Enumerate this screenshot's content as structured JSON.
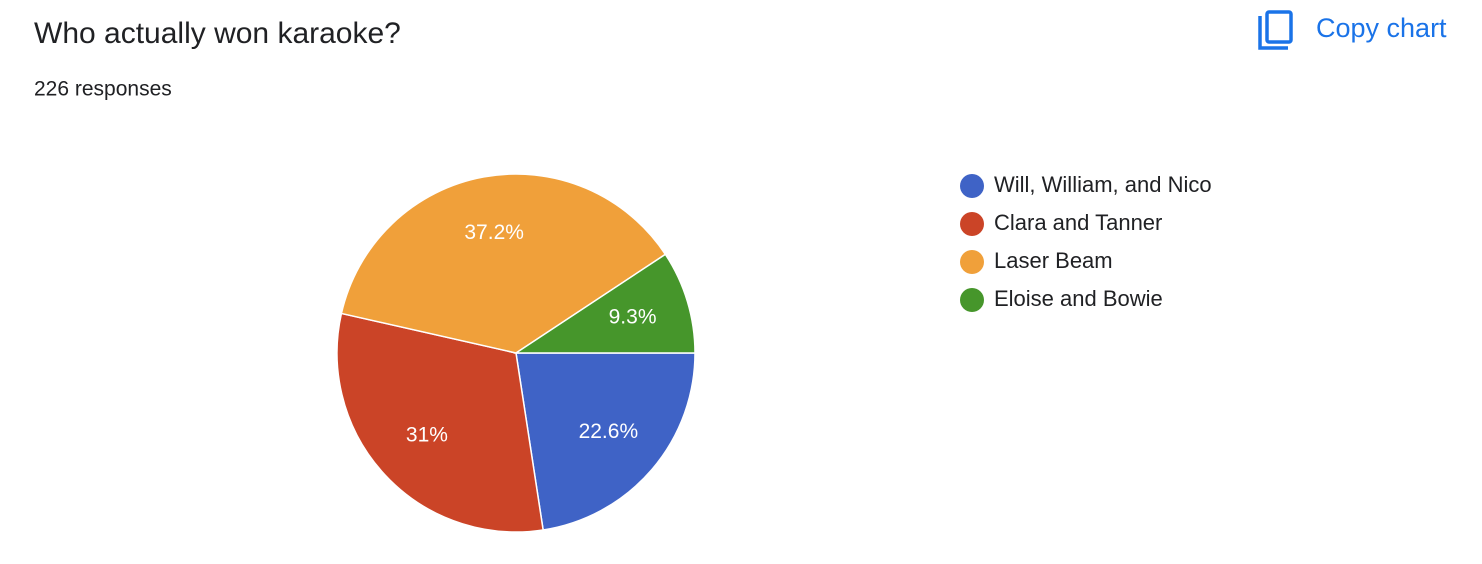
{
  "toolbar": {
    "copy_button": "Copy chart"
  },
  "chart_data": {
    "type": "pie",
    "title": "Who actually won karaoke?",
    "subtitle": "226 responses",
    "categories": [
      "Will, William, and Nico",
      "Clara and Tanner",
      "Laser Beam",
      "Eloise and Bowie"
    ],
    "values": [
      22.6,
      31,
      37.2,
      9.3
    ],
    "value_labels": [
      "22.6%",
      "31%",
      "37.2%",
      "9.3%"
    ],
    "colors": [
      "#3f63c6",
      "#cb4427",
      "#f0a03a",
      "#46962b"
    ],
    "legend": "right"
  }
}
